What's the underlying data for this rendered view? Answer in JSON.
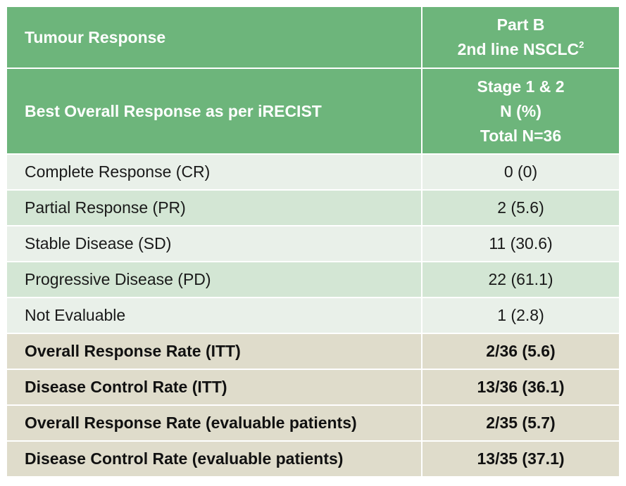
{
  "header": {
    "row1_label": "Tumour Response",
    "row1_right_line1": "Part B",
    "row1_right_line2": "2nd line NSCLC",
    "row1_right_sup": "2",
    "row2_label": "Best Overall Response as per iRECIST",
    "row2_right_line1": "Stage 1 & 2",
    "row2_right_line2": "N (%)",
    "row2_right_line3": "Total N=36"
  },
  "rows": [
    {
      "label": "Complete Response (CR)",
      "value": "0 (0)"
    },
    {
      "label": "Partial Response (PR)",
      "value": "2 (5.6)"
    },
    {
      "label": "Stable Disease (SD)",
      "value": "11 (30.6)"
    },
    {
      "label": "Progressive Disease (PD)",
      "value": "22 (61.1)"
    },
    {
      "label": "Not Evaluable",
      "value": "1 (2.8)"
    }
  ],
  "summary_rows": [
    {
      "label": "Overall Response Rate (ITT)",
      "value": "2/36 (5.6)"
    },
    {
      "label": "Disease Control Rate (ITT)",
      "value": "13/36 (36.1)"
    },
    {
      "label": "Overall Response Rate (evaluable patients)",
      "value": "2/35 (5.7)"
    },
    {
      "label": "Disease Control Rate (evaluable patients)",
      "value": "13/35 (37.1)"
    }
  ],
  "colors": {
    "header_green": "#6db57b",
    "row_light": "#e9f0e9",
    "row_dark": "#d3e6d4",
    "summary_beige": "#dfdccb"
  }
}
